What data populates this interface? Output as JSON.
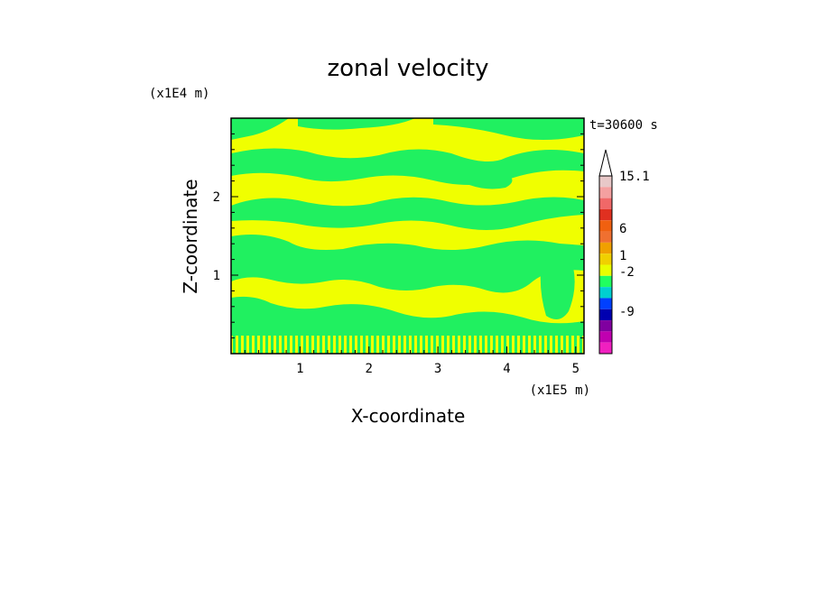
{
  "chart_data": {
    "type": "heatmap",
    "title": "zonal velocity",
    "xlabel": "X-coordinate",
    "ylabel": "Z-coordinate",
    "x_unit": "(x1E5 m)",
    "y_unit": "(x1E4 m)",
    "time_label": "t=30600 s",
    "x_ticks": [
      "1",
      "2",
      "3",
      "4",
      "5"
    ],
    "y_ticks": [
      "1",
      "2"
    ],
    "xlim": [
      0,
      5.12
    ],
    "ylim": [
      0,
      3.0
    ],
    "colorbar": {
      "labels": [
        "15.1",
        "6",
        "1",
        "-2",
        "-9"
      ],
      "colors": [
        "#e8c8c8",
        "#f4a0a0",
        "#f06868",
        "#e03020",
        "#f06010",
        "#f07030",
        "#f0a000",
        "#f0d000",
        "#e8ff00",
        "#20ff60",
        "#00d0d0",
        "#0040ff",
        "#0000b0",
        "#8000a0",
        "#c000b0",
        "#f020c0"
      ]
    },
    "fields": {
      "yellow": "#f0ff00",
      "green": "#20f060"
    }
  }
}
